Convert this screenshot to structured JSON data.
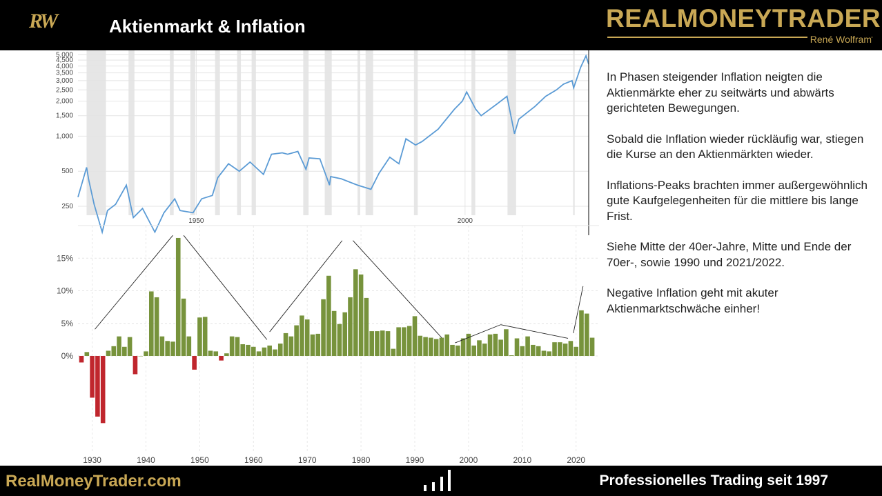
{
  "header": {
    "logo": "RW",
    "title": "Aktienmarkt & Inflation",
    "brand": "REALMONEYTRADER",
    "brand_sub": "René Wolfram"
  },
  "text_panel": {
    "paragraphs": [
      "In Phasen steigender Inflation neigten die Aktienmärkte eher zu seitwärts und abwärts gerichteten Bewegungen.",
      "Sobald die Inflation wieder rückläufig war, stiegen die Kurse an den Aktienmärkten wieder.",
      "Inflations-Peaks brachten immer außergewöhnlich gute Kaufgelegenheiten für die mittlere bis lange Frist.",
      "Siehe Mitte der 40er-Jahre, Mitte und Ende der 70er-, sowie 1990 und 2021/2022.",
      "Negative Inflation geht mit akuter Aktienmarktschwäche einher!"
    ]
  },
  "footer": {
    "left": "RealMoneyTrader.com",
    "right": "Professionelles Trading seit 1997"
  },
  "colors": {
    "gold": "#c9a855",
    "line": "#5b9bd5",
    "bar_pos": "#77933c",
    "bar_neg": "#c0262d",
    "recession": "#e6e6e6"
  },
  "chart_data": [
    {
      "type": "line",
      "scale": "log",
      "ylim": [
        130,
        5100
      ],
      "xlim": [
        1928,
        2023
      ],
      "yticks": [
        250,
        500,
        1000,
        1500,
        2000,
        2500,
        3000,
        3500,
        4000,
        4500,
        5000
      ],
      "ytick_labels": [
        "250",
        "500",
        "1,000",
        "1,500",
        "2,000",
        "2,500",
        "3,000",
        "3,500",
        "4,000",
        "4,500",
        "5,000"
      ],
      "xticks": [
        1950,
        2000
      ],
      "xtick_labels": [
        "1950",
        "2000"
      ],
      "grid": true,
      "recessions": [
        [
          1929.6,
          1933.2
        ],
        [
          1937.4,
          1938.5
        ],
        [
          1945.1,
          1945.8
        ],
        [
          1948.9,
          1949.8
        ],
        [
          1953.5,
          1954.4
        ],
        [
          1957.6,
          1958.3
        ],
        [
          1960.3,
          1961.1
        ],
        [
          1969.9,
          1970.9
        ],
        [
          1973.9,
          1975.2
        ],
        [
          1980.0,
          1980.5
        ],
        [
          1981.5,
          1982.9
        ],
        [
          1990.5,
          1991.2
        ],
        [
          2001.2,
          2001.9
        ],
        [
          2007.9,
          2009.5
        ],
        [
          2020.1,
          2020.4
        ]
      ],
      "x": [
        1928,
        1929.6,
        1930,
        1931,
        1932.5,
        1933.5,
        1935,
        1937,
        1938.3,
        1940,
        1942.3,
        1944,
        1946,
        1947,
        1949.4,
        1951,
        1953,
        1954,
        1956,
        1958,
        1960,
        1962.5,
        1964,
        1966,
        1967,
        1968.9,
        1970.4,
        1971,
        1973,
        1974.8,
        1975,
        1977,
        1980,
        1982.5,
        1984,
        1986,
        1987.7,
        1989,
        1990.8,
        1992,
        1995,
        1998,
        1999.5,
        2000.3,
        2002,
        2003,
        2006,
        2007.8,
        2009.2,
        2010,
        2013,
        2015,
        2017,
        2018.3,
        2019.9,
        2020.2,
        2021.5,
        2022.5,
        2023
      ],
      "values": [
        300,
        540,
        420,
        260,
        150,
        230,
        260,
        380,
        200,
        240,
        150,
        220,
        290,
        230,
        220,
        290,
        310,
        440,
        580,
        500,
        600,
        470,
        700,
        720,
        700,
        740,
        520,
        650,
        640,
        380,
        450,
        430,
        380,
        350,
        480,
        660,
        580,
        950,
        840,
        900,
        1150,
        1700,
        2000,
        2400,
        1700,
        1500,
        1900,
        2200,
        1050,
        1400,
        1800,
        2200,
        2500,
        2800,
        3000,
        2600,
        3900,
        4900,
        4150
      ]
    },
    {
      "type": "bar",
      "categories": [
        1928,
        1929,
        1930,
        1931,
        1932,
        1933,
        1934,
        1935,
        1936,
        1937,
        1938,
        1939,
        1940,
        1941,
        1942,
        1943,
        1944,
        1945,
        1946,
        1947,
        1948,
        1949,
        1950,
        1951,
        1952,
        1953,
        1954,
        1955,
        1956,
        1957,
        1958,
        1959,
        1960,
        1961,
        1962,
        1963,
        1964,
        1965,
        1966,
        1967,
        1968,
        1969,
        1970,
        1971,
        1972,
        1973,
        1974,
        1975,
        1976,
        1977,
        1978,
        1979,
        1980,
        1981,
        1982,
        1983,
        1984,
        1985,
        1986,
        1987,
        1988,
        1989,
        1990,
        1991,
        1992,
        1993,
        1994,
        1995,
        1996,
        1997,
        1998,
        1999,
        2000,
        2001,
        2002,
        2003,
        2004,
        2005,
        2006,
        2007,
        2008,
        2009,
        2010,
        2011,
        2012,
        2013,
        2014,
        2015,
        2016,
        2017,
        2018,
        2019,
        2020,
        2021,
        2022,
        2023
      ],
      "values": [
        -1.0,
        0.6,
        -6.4,
        -9.3,
        -10.3,
        0.8,
        1.5,
        3.0,
        1.4,
        2.9,
        -2.8,
        0.0,
        0.7,
        9.9,
        9.0,
        3.0,
        2.3,
        2.2,
        18.1,
        8.8,
        3.0,
        -2.1,
        5.9,
        6.0,
        0.8,
        0.7,
        -0.7,
        0.4,
        3.0,
        2.9,
        1.8,
        1.7,
        1.4,
        0.7,
        1.3,
        1.6,
        1.0,
        1.9,
        3.5,
        3.0,
        4.7,
        6.2,
        5.6,
        3.3,
        3.4,
        8.7,
        12.3,
        6.9,
        4.9,
        6.7,
        9.0,
        13.3,
        12.5,
        8.9,
        3.8,
        3.8,
        3.9,
        3.8,
        1.1,
        4.4,
        4.4,
        4.6,
        6.1,
        3.1,
        2.9,
        2.8,
        2.6,
        2.8,
        3.3,
        1.7,
        1.6,
        2.7,
        3.4,
        1.6,
        2.4,
        1.9,
        3.3,
        3.4,
        2.5,
        4.1,
        0.1,
        2.7,
        1.5,
        3.0,
        1.7,
        1.5,
        0.8,
        0.7,
        2.1,
        2.1,
        1.9,
        2.3,
        1.4,
        7.0,
        6.5,
        2.8
      ],
      "ylim": [
        -15.5,
        19
      ],
      "yticks": [
        0,
        5,
        10,
        15
      ],
      "ytick_labels": [
        "0%",
        "5%",
        "10%",
        "15%"
      ],
      "xticks": [
        1930,
        1940,
        1950,
        1960,
        1970,
        1980,
        1990,
        2000,
        2010,
        2020
      ],
      "xtick_labels": [
        "1930",
        "1940",
        "1950",
        "1960",
        "1970",
        "1980",
        "1990",
        "2000",
        "2010",
        "2020"
      ],
      "grid": true,
      "trend_lines": [
        [
          1930.5,
          4.1,
          1945,
          18.5
        ],
        [
          1947,
          18.5,
          1962.5,
          2.5
        ],
        [
          1963,
          3.7,
          1976.5,
          17.7
        ],
        [
          1978.5,
          17.7,
          1995,
          2.8
        ],
        [
          1997.5,
          2.0,
          2006,
          4.8
        ],
        [
          2006,
          4.8,
          2018.5,
          2.7
        ],
        [
          2019.5,
          3.5,
          2021.3,
          10.7
        ]
      ]
    }
  ]
}
